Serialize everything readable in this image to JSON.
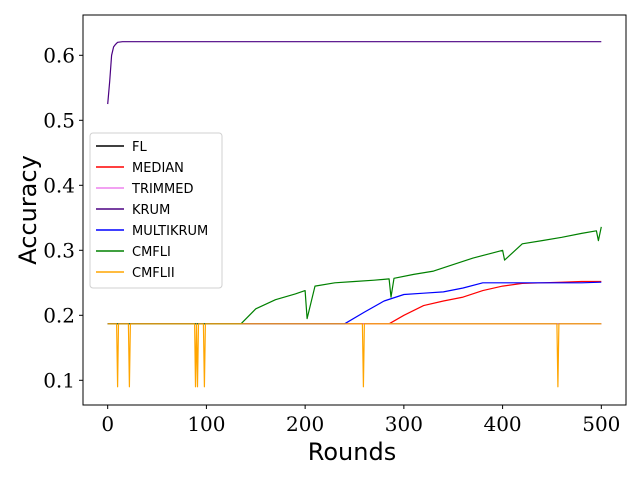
{
  "chart_data": {
    "type": "line",
    "title": "",
    "xlabel": "Rounds",
    "ylabel": "Accuracy",
    "xlim": [
      -25,
      525
    ],
    "ylim": [
      0.062,
      0.662
    ],
    "xticks": [
      0,
      100,
      200,
      300,
      400,
      500
    ],
    "yticks": [
      0.1,
      0.2,
      0.3,
      0.4,
      0.5,
      0.6
    ],
    "xtick_labels": [
      "0",
      "100",
      "200",
      "300",
      "400",
      "500"
    ],
    "ytick_labels": [
      "0.1",
      "0.2",
      "0.3",
      "0.4",
      "0.5",
      "0.6"
    ],
    "grid": false,
    "legend_position": "center-left",
    "series": [
      {
        "name": "FL",
        "color": "#000000",
        "x": [
          0,
          500
        ],
        "y": [
          0.187,
          0.187
        ]
      },
      {
        "name": "MEDIAN",
        "color": "#ff0000",
        "x": [
          0,
          285,
          300,
          320,
          340,
          360,
          380,
          400,
          420,
          440,
          460,
          480,
          500
        ],
        "y": [
          0.187,
          0.187,
          0.2,
          0.215,
          0.222,
          0.228,
          0.238,
          0.245,
          0.249,
          0.25,
          0.251,
          0.252,
          0.252
        ]
      },
      {
        "name": "TRIMMED",
        "color": "#ee82ee",
        "x": [
          0,
          500
        ],
        "y": [
          0.187,
          0.187
        ]
      },
      {
        "name": "KRUM",
        "color": "#4b0082",
        "x": [
          0,
          2,
          4,
          6,
          8,
          10,
          15,
          20,
          500
        ],
        "y": [
          0.525,
          0.56,
          0.6,
          0.613,
          0.617,
          0.62,
          0.621,
          0.621,
          0.621
        ]
      },
      {
        "name": "MULTIKRUM",
        "color": "#0000ff",
        "x": [
          0,
          240,
          260,
          280,
          300,
          320,
          340,
          360,
          380,
          400,
          420,
          440,
          460,
          480,
          500
        ],
        "y": [
          0.187,
          0.187,
          0.205,
          0.222,
          0.232,
          0.234,
          0.236,
          0.242,
          0.25,
          0.25,
          0.25,
          0.25,
          0.25,
          0.25,
          0.251
        ]
      },
      {
        "name": "CMFLI",
        "color": "#008000",
        "x": [
          0,
          135,
          150,
          170,
          190,
          200,
          202,
          210,
          230,
          250,
          270,
          285,
          287,
          290,
          310,
          330,
          350,
          370,
          390,
          400,
          402,
          420,
          440,
          460,
          480,
          495,
          497,
          500
        ],
        "y": [
          0.187,
          0.187,
          0.21,
          0.224,
          0.233,
          0.238,
          0.195,
          0.245,
          0.25,
          0.252,
          0.254,
          0.256,
          0.228,
          0.257,
          0.263,
          0.268,
          0.278,
          0.288,
          0.296,
          0.3,
          0.285,
          0.31,
          0.315,
          0.32,
          0.326,
          0.33,
          0.315,
          0.336
        ]
      },
      {
        "name": "CMFLII",
        "color": "#ffa500",
        "x": [
          0,
          9,
          10,
          11,
          21,
          22,
          23,
          88,
          89,
          90,
          91,
          92,
          97,
          98,
          99,
          258,
          259,
          260,
          455,
          456,
          457,
          500
        ],
        "y": [
          0.187,
          0.187,
          0.09,
          0.187,
          0.187,
          0.09,
          0.187,
          0.187,
          0.09,
          0.187,
          0.09,
          0.187,
          0.187,
          0.09,
          0.187,
          0.187,
          0.09,
          0.187,
          0.187,
          0.09,
          0.187,
          0.187
        ]
      }
    ]
  }
}
